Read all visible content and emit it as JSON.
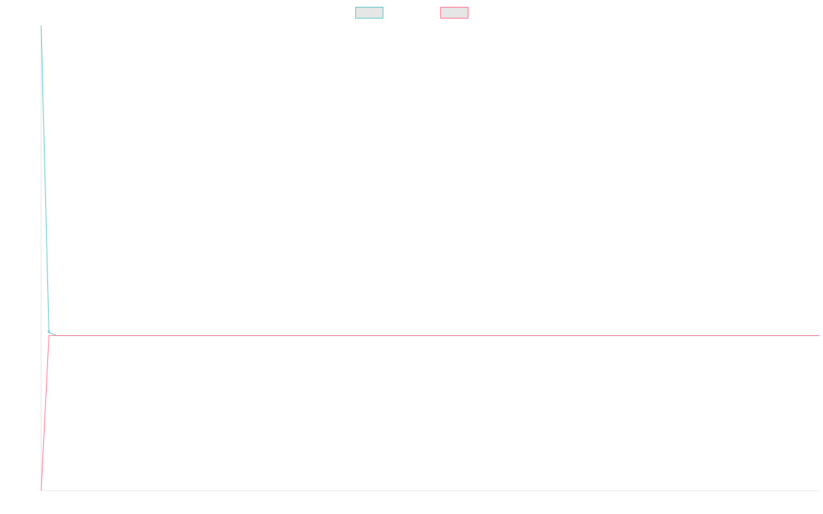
{
  "chart_data": {
    "type": "line",
    "title": "",
    "xlabel": "",
    "ylabel": "",
    "grid": false,
    "legend_position": "top-center",
    "x": [
      0,
      1,
      2,
      3,
      4,
      5,
      6,
      7,
      8,
      9,
      10,
      11,
      12,
      13,
      14,
      15,
      16,
      17,
      18,
      19,
      20,
      21,
      22,
      23,
      24,
      25,
      26,
      27,
      28,
      29,
      30,
      31,
      32,
      33,
      34,
      35,
      36,
      37,
      38,
      39,
      40,
      41,
      42,
      43,
      44,
      45,
      46,
      47,
      48,
      49,
      50,
      51,
      52,
      53,
      54,
      55,
      56,
      57,
      58,
      59,
      60,
      61,
      62,
      63,
      64,
      65,
      66,
      67,
      68,
      69,
      70,
      71,
      72,
      73,
      74,
      75,
      76,
      77,
      78,
      79,
      80,
      81,
      82,
      83,
      84,
      85,
      86,
      87,
      88,
      89,
      90,
      91,
      92,
      93,
      94,
      95,
      96,
      97,
      98,
      99,
      100
    ],
    "xlim": [
      0,
      100
    ],
    "ylim": [
      -1,
      2
    ],
    "series": [
      {
        "name": "",
        "color": "#4bc0c0",
        "fill": "#e6e6e6",
        "values": [
          2,
          0.02,
          0,
          0,
          0,
          0,
          0,
          0,
          0,
          0,
          0,
          0,
          0,
          0,
          0,
          0,
          0,
          0,
          0,
          0,
          0,
          0,
          0,
          0,
          0,
          0,
          0,
          0,
          0,
          0,
          0,
          0,
          0,
          0,
          0,
          0,
          0,
          0,
          0,
          0,
          0,
          0,
          0,
          0,
          0,
          0,
          0,
          0,
          0,
          0,
          0,
          0,
          0,
          0,
          0,
          0,
          0,
          0,
          0,
          0,
          0,
          0,
          0,
          0,
          0,
          0,
          0,
          0,
          0,
          0,
          0,
          0,
          0,
          0,
          0,
          0,
          0,
          0,
          0,
          0,
          0,
          0,
          0,
          0,
          0,
          0,
          0,
          0,
          0,
          0,
          0,
          0,
          0,
          0,
          0,
          0,
          0,
          0,
          0,
          0,
          0
        ]
      },
      {
        "name": "",
        "color": "#ff6384",
        "fill": "#e6e6e6",
        "values": [
          -1,
          0,
          0,
          0,
          0,
          0,
          0,
          0,
          0,
          0,
          0,
          0,
          0,
          0,
          0,
          0,
          0,
          0,
          0,
          0,
          0,
          0,
          0,
          0,
          0,
          0,
          0,
          0,
          0,
          0,
          0,
          0,
          0,
          0,
          0,
          0,
          0,
          0,
          0,
          0,
          0,
          0,
          0,
          0,
          0,
          0,
          0,
          0,
          0,
          0,
          0,
          0,
          0,
          0,
          0,
          0,
          0,
          0,
          0,
          0,
          0,
          0,
          0,
          0,
          0,
          0,
          0,
          0,
          0,
          0,
          0,
          0,
          0,
          0,
          0,
          0,
          0,
          0,
          0,
          0,
          0,
          0,
          0,
          0,
          0,
          0,
          0,
          0,
          0,
          0,
          0,
          0,
          0,
          0,
          0,
          0,
          0,
          0,
          0,
          0,
          0
        ]
      }
    ]
  }
}
